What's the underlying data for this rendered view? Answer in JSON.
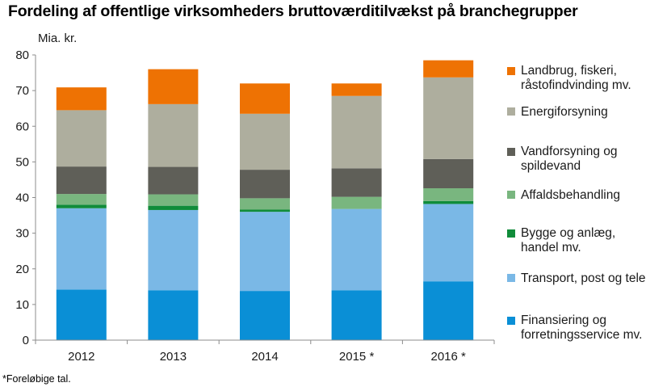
{
  "header": {
    "title": "Fordeling af offentlige virksomheders bruttoværditilvækst på branchegrupper"
  },
  "footnote": "*Foreløbige tal.",
  "chart_data": {
    "type": "bar",
    "stacked": true,
    "title": "Fordeling af offentlige virksomheders bruttoværditilvækst på branchegrupper",
    "ylabel": "Mia. kr.",
    "xlabel": "",
    "ylim": [
      0,
      80
    ],
    "yticks": [
      0,
      10,
      20,
      30,
      40,
      50,
      60,
      70,
      80
    ],
    "grid": false,
    "legend_position": "right",
    "categories": [
      "2012",
      "2013",
      "2014",
      "2015 *",
      "2016 *"
    ],
    "series": [
      {
        "name": "Finansiering og forretningsservice mv.",
        "lines": [
          "Finansiering og",
          "forretningsservice mv."
        ],
        "color": "#0a8fd6",
        "values": [
          14.2,
          14.0,
          13.8,
          14.0,
          16.5
        ]
      },
      {
        "name": "Transport, post og tele",
        "lines": [
          "Transport, post og tele"
        ],
        "color": "#7ab8e6",
        "values": [
          22.8,
          22.5,
          22.2,
          22.8,
          21.7
        ]
      },
      {
        "name": "Bygge og anlæg, handel mv.",
        "lines": [
          "Bygge og anlæg,",
          "handel mv."
        ],
        "color": "#108c3a",
        "values": [
          1.0,
          1.2,
          0.6,
          0.0,
          0.8
        ]
      },
      {
        "name": "Affaldsbehandling",
        "lines": [
          "Affaldsbehandling"
        ],
        "color": "#79b67f",
        "values": [
          3.0,
          3.2,
          3.2,
          3.4,
          3.6
        ]
      },
      {
        "name": "Vandforsyning og spildevand",
        "lines": [
          "Vandforsyning og",
          "spildevand"
        ],
        "color": "#5f5f58",
        "values": [
          7.7,
          7.7,
          8.0,
          8.0,
          8.2
        ]
      },
      {
        "name": "Energiforsyning",
        "lines": [
          "Energiforsyning"
        ],
        "color": "#aeae9e",
        "values": [
          15.8,
          17.6,
          15.7,
          20.3,
          22.9
        ]
      },
      {
        "name": "Landbrug, fiskeri, råstofindvinding mv.",
        "lines": [
          "Landbrug, fiskeri,",
          "råstofindvinding mv."
        ],
        "color": "#ee7203",
        "values": [
          6.4,
          9.8,
          8.5,
          3.5,
          4.8
        ]
      }
    ]
  }
}
